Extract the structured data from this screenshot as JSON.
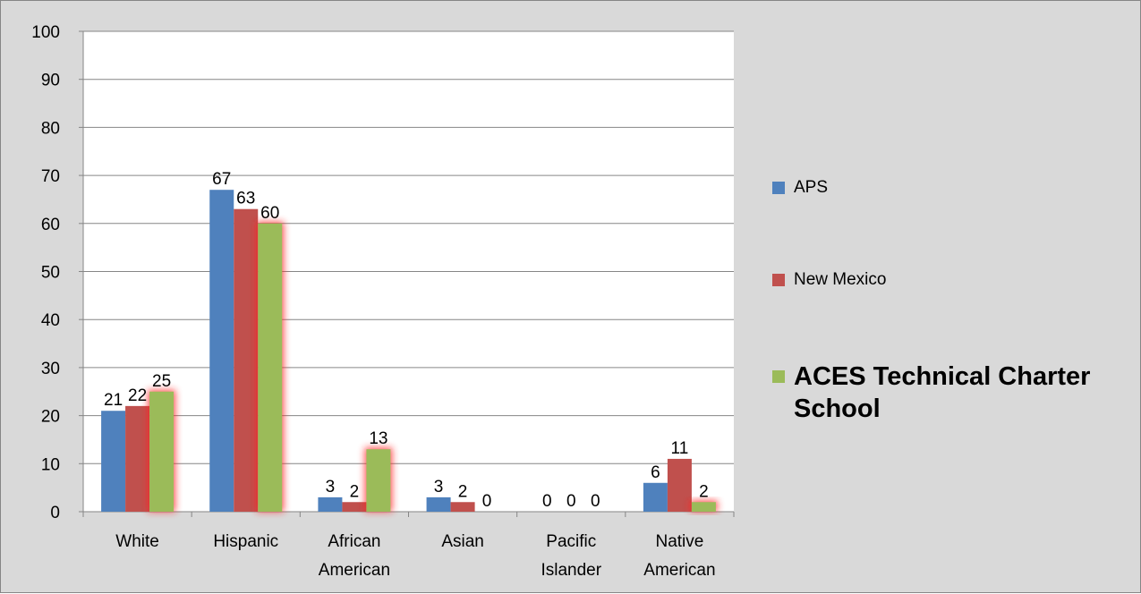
{
  "chart_data": {
    "type": "bar",
    "categories": [
      [
        "White"
      ],
      [
        "Hispanic"
      ],
      [
        "African",
        "American"
      ],
      [
        "Asian"
      ],
      [
        "Pacific",
        "Islander"
      ],
      [
        "Native",
        "American"
      ]
    ],
    "series": [
      {
        "name": "APS",
        "color": "#4f81bd",
        "values": [
          21,
          67,
          3,
          3,
          0,
          6
        ]
      },
      {
        "name": "New Mexico",
        "color": "#c0504d",
        "values": [
          22,
          63,
          2,
          2,
          0,
          11
        ]
      },
      {
        "name": "ACES Technical Charter School",
        "color": "#9bbb59",
        "values": [
          25,
          60,
          13,
          0,
          0,
          2
        ],
        "highlight": true
      }
    ],
    "data_labels": [
      [
        "21",
        "67",
        "3",
        "3",
        "0",
        "6"
      ],
      [
        "22",
        "63",
        "2",
        "2",
        "0",
        "11"
      ],
      [
        "25",
        "60",
        "13",
        "0",
        "0",
        "2"
      ]
    ],
    "ylim": [
      0,
      100
    ],
    "yticks": [
      0,
      10,
      20,
      30,
      40,
      50,
      60,
      70,
      80,
      90,
      100
    ],
    "grid": true,
    "legend_position": "right",
    "title": "",
    "xlabel": "",
    "ylabel": ""
  }
}
